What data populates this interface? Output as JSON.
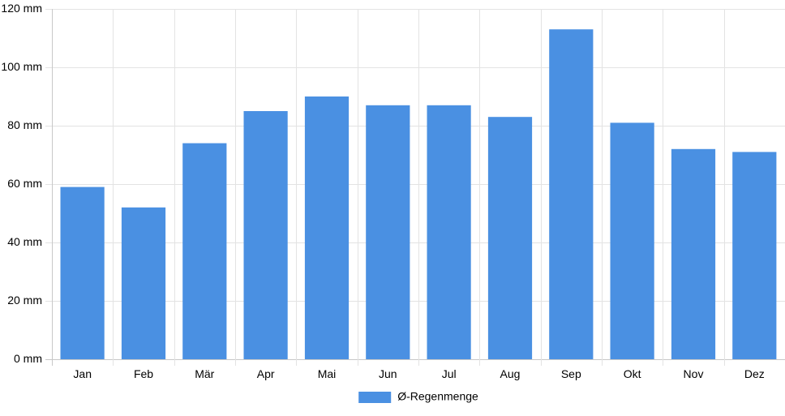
{
  "chart_data": {
    "type": "bar",
    "categories": [
      "Jan",
      "Feb",
      "Mär",
      "Apr",
      "Mai",
      "Jun",
      "Jul",
      "Aug",
      "Sep",
      "Okt",
      "Nov",
      "Dez"
    ],
    "series": [
      {
        "name": "Ø-Regenmenge",
        "values": [
          59,
          52,
          74,
          85,
          90,
          87,
          87,
          83,
          113,
          81,
          72,
          71
        ],
        "color": "#4a90e2"
      }
    ],
    "y_ticks": [
      0,
      20,
      40,
      60,
      80,
      100,
      120
    ],
    "y_unit": "mm",
    "ylim": [
      0,
      120
    ],
    "grid": true,
    "legend_position": "bottom"
  }
}
